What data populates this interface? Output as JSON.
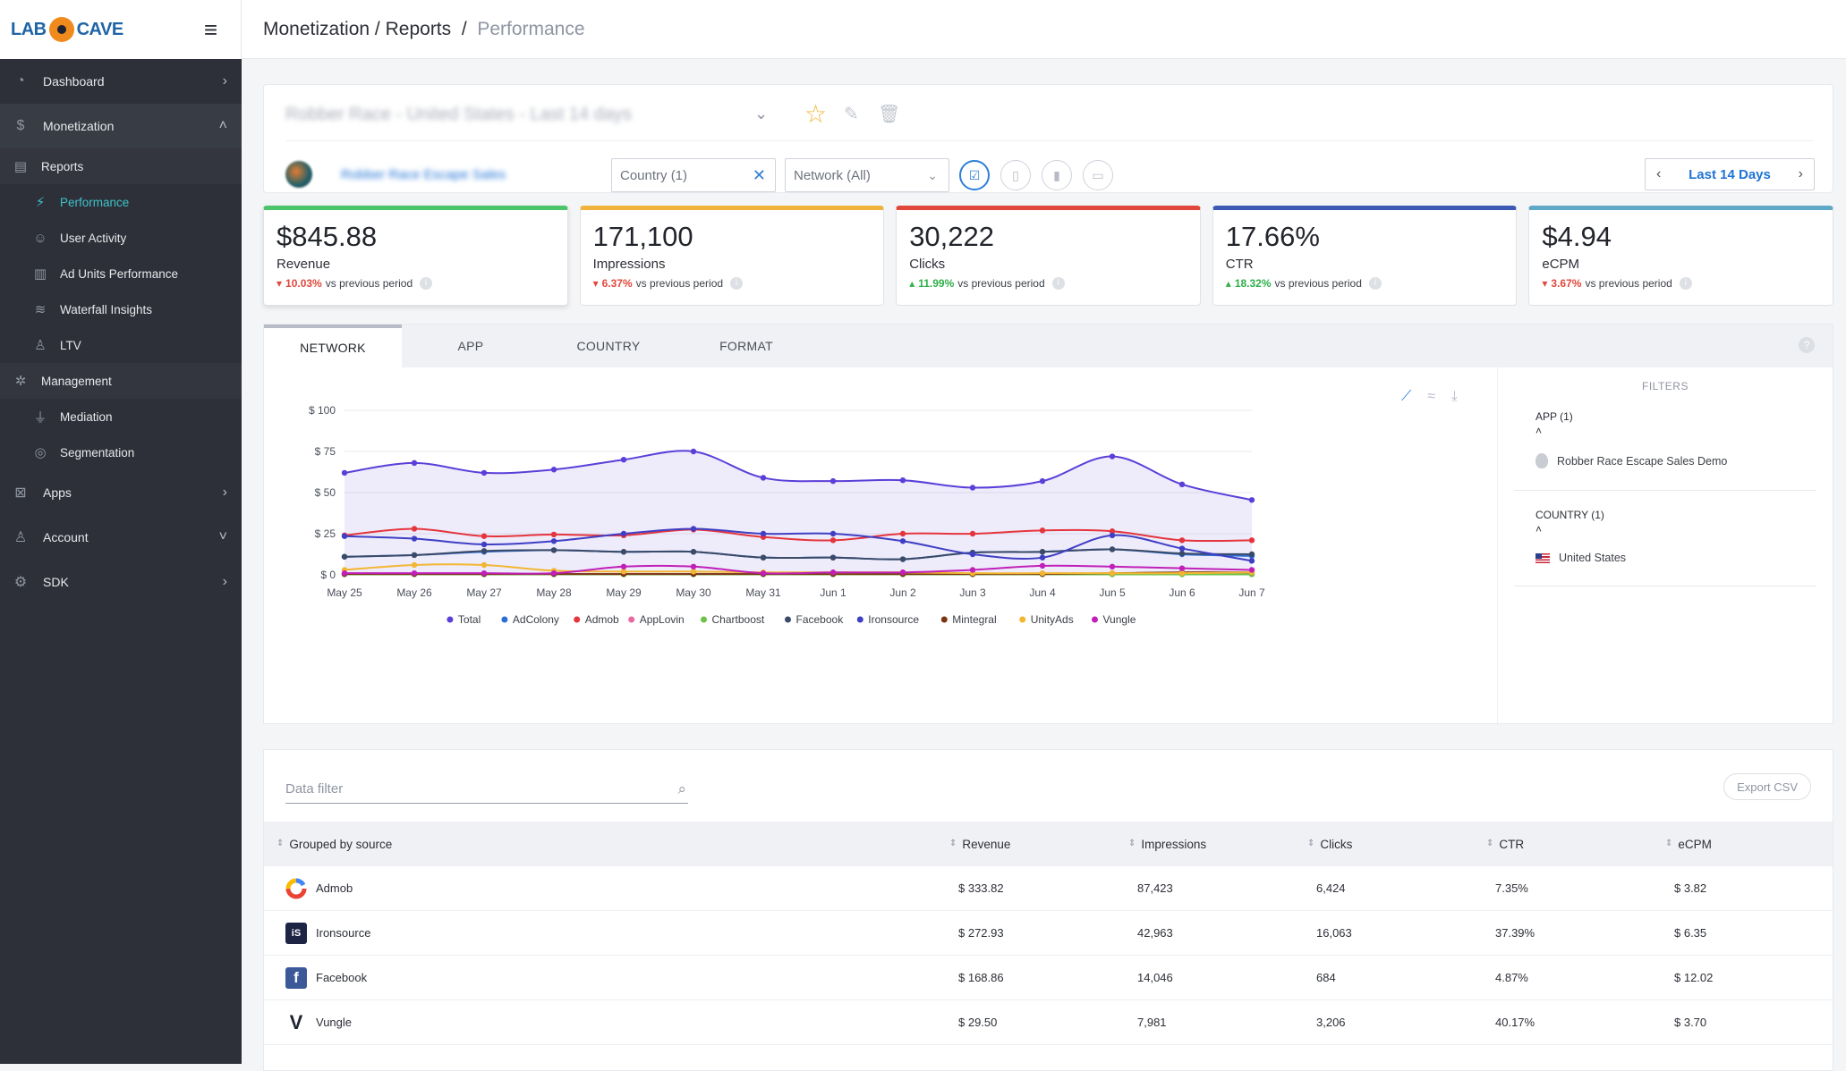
{
  "sidebar": {
    "logo": {
      "left": "LAB",
      "right": "CAVE"
    },
    "items": [
      {
        "label": "Dashboard",
        "icon": "dashboard-icon"
      },
      {
        "label": "Monetization",
        "icon": "dollar-icon"
      },
      {
        "label": "Apps",
        "icon": "apps-icon"
      },
      {
        "label": "Account",
        "icon": "user-icon"
      },
      {
        "label": "SDK",
        "icon": "sdk-icon"
      }
    ],
    "reports": {
      "label": "Reports"
    },
    "reports_sub": [
      {
        "label": "Performance",
        "active": true
      },
      {
        "label": "User Activity"
      },
      {
        "label": "Ad Units Performance"
      },
      {
        "label": "Waterfall Insights"
      },
      {
        "label": "LTV"
      }
    ],
    "management": {
      "label": "Management"
    },
    "management_sub": [
      {
        "label": "Mediation"
      },
      {
        "label": "Segmentation"
      }
    ]
  },
  "breadcrumb": {
    "part1": "Monetization",
    "sep1": "/",
    "part2": "Reports",
    "sep2": "/",
    "current": "Performance"
  },
  "report": {
    "title": "Robber Race - United States - Last 14 days",
    "app_name": "Robber Race Escape Sales",
    "country_filter": "Country (1)",
    "network_filter": "Network (All)",
    "date_range": "Last 14 Days"
  },
  "kpis": [
    {
      "value": "$845.88",
      "label": "Revenue",
      "delta": "10.03%",
      "direction": "down",
      "suffix": "vs previous period",
      "color": "#4cc46a"
    },
    {
      "value": "171,100",
      "label": "Impressions",
      "delta": "6.37%",
      "direction": "down",
      "suffix": "vs previous period",
      "color": "#f0b43c"
    },
    {
      "value": "30,222",
      "label": "Clicks",
      "delta": "11.99%",
      "direction": "up",
      "suffix": "vs previous period",
      "color": "#e0483c"
    },
    {
      "value": "17.66%",
      "label": "CTR",
      "delta": "18.32%",
      "direction": "up",
      "suffix": "vs previous period",
      "color": "#3c5ab4"
    },
    {
      "value": "$4.94",
      "label": "eCPM",
      "delta": "3.67%",
      "direction": "down",
      "suffix": "vs previous period",
      "color": "#5fa8c8"
    }
  ],
  "tabs": [
    "NETWORK",
    "APP",
    "COUNTRY",
    "FORMAT"
  ],
  "filters_panel": {
    "title": "FILTERS",
    "app_head": "APP (1)",
    "app_value": "Robber Race Escape Sales Demo",
    "country_head": "COUNTRY (1)",
    "country_value": "United States"
  },
  "chart_data": {
    "type": "line",
    "x": [
      "May 25",
      "May 26",
      "May 27",
      "May 28",
      "May 29",
      "May 30",
      "May 31",
      "Jun 1",
      "Jun 2",
      "Jun 3",
      "Jun 4",
      "Jun 5",
      "Jun 6",
      "Jun 7"
    ],
    "yticks": [
      "$ 0",
      "$ 25",
      "$ 50",
      "$ 75",
      "$ 100"
    ],
    "ylim": [
      0,
      100
    ],
    "legend_position": "bottom",
    "series": [
      {
        "name": "Total",
        "color": "#5b3fd8",
        "area": true,
        "values": [
          62,
          68,
          62,
          64,
          70,
          75,
          59,
          57,
          57.5,
          53,
          57,
          72,
          55,
          45.5
        ]
      },
      {
        "name": "AdColony",
        "color": "#2b6fd6",
        "values": [
          11,
          12,
          14,
          15,
          14,
          14,
          10.5,
          10.5,
          9.5,
          13.5,
          14,
          15.5,
          12.5,
          11.5
        ]
      },
      {
        "name": "Admob",
        "color": "#e5353c",
        "values": [
          24,
          28,
          23.5,
          24.5,
          24,
          27.5,
          23,
          21,
          25,
          25,
          27,
          26.5,
          21,
          21
        ]
      },
      {
        "name": "AppLovin",
        "color": "#e86aa0",
        "values": [
          0.5,
          0.5,
          0.5,
          0.5,
          0.5,
          0.5,
          0.5,
          0.5,
          0.5,
          0.5,
          0.5,
          0.5,
          0.5,
          0.5
        ]
      },
      {
        "name": "Chartboost",
        "color": "#6cc24a",
        "values": [
          0.3,
          0.3,
          0.3,
          0.3,
          0.3,
          0.3,
          0.3,
          0.3,
          0.3,
          0.3,
          0.3,
          0.3,
          0.3,
          0.3
        ]
      },
      {
        "name": "Facebook",
        "color": "#3b4a66",
        "values": [
          11,
          12,
          14.5,
          15,
          14,
          14,
          10.5,
          10.5,
          9.5,
          13.5,
          14,
          15.5,
          13,
          12.5
        ]
      },
      {
        "name": "Ironsource",
        "color": "#3f3fc4",
        "values": [
          23.5,
          22,
          18.5,
          20.5,
          25,
          28,
          25,
          25,
          20.5,
          12.5,
          10.5,
          24,
          16,
          8.5
        ]
      },
      {
        "name": "Mintegral",
        "color": "#7a3412",
        "values": [
          0.5,
          0.5,
          0.5,
          0.5,
          0.5,
          0.5,
          0.5,
          0.5,
          0.5,
          0.5,
          0.5,
          1,
          1.5,
          1.5
        ]
      },
      {
        "name": "UnityAds",
        "color": "#f2b632",
        "values": [
          3,
          6,
          6,
          2.5,
          2,
          2,
          1.5,
          1.5,
          1.5,
          1,
          1,
          1,
          1,
          1.5
        ]
      },
      {
        "name": "Vungle",
        "color": "#c020b8",
        "values": [
          1,
          1,
          1,
          1,
          5,
          5,
          1,
          1.5,
          1.5,
          3,
          5.5,
          5,
          4,
          3
        ]
      }
    ]
  },
  "table": {
    "filter_placeholder": "Data filter",
    "export_label": "Export CSV",
    "headers": {
      "source": "Grouped by source",
      "revenue": "Revenue",
      "impressions": "Impressions",
      "clicks": "Clicks",
      "ctr": "CTR",
      "ecpm": "eCPM"
    },
    "rows": [
      {
        "name": "Admob",
        "revenue": "$ 333.82",
        "impressions": "87,423",
        "clicks": "6,424",
        "ctr": "7.35%",
        "ecpm": "$ 3.82"
      },
      {
        "name": "Ironsource",
        "revenue": "$ 272.93",
        "impressions": "42,963",
        "clicks": "16,063",
        "ctr": "37.39%",
        "ecpm": "$ 6.35"
      },
      {
        "name": "Facebook",
        "revenue": "$ 168.86",
        "impressions": "14,046",
        "clicks": "684",
        "ctr": "4.87%",
        "ecpm": "$ 12.02"
      },
      {
        "name": "Vungle",
        "revenue": "$ 29.50",
        "impressions": "7,981",
        "clicks": "3,206",
        "ctr": "40.17%",
        "ecpm": "$ 3.70"
      }
    ]
  }
}
